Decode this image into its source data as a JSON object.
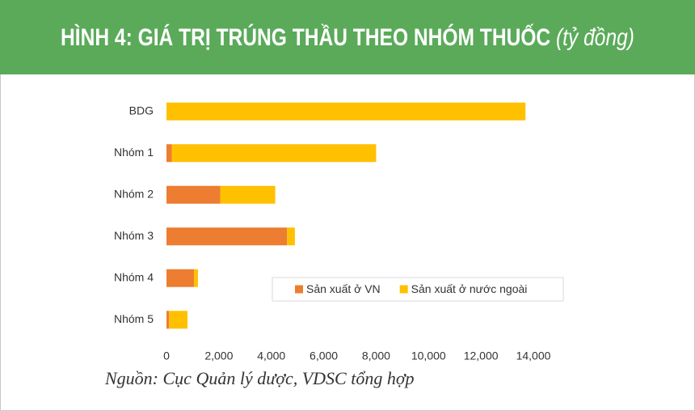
{
  "chart_data": {
    "type": "stacked_barh",
    "title": "HÌNH 4: GIÁ TRỊ TRÚNG THẦU THEO NHÓM THUỐC",
    "unit": "(tỷ đồng)",
    "source": "Nguồn: Cục Quản lý dược, VDSC tổng hợp",
    "categories": [
      "BDG",
      "Nhóm 1",
      "Nhóm 2",
      "Nhóm 3",
      "Nhóm 4",
      "Nhóm 5"
    ],
    "series": [
      {
        "name": "Sản xuất ở VN",
        "color": "#ed7d31",
        "values": [
          0,
          200,
          2050,
          4600,
          1050,
          100
        ]
      },
      {
        "name": "Sản xuất ở nước ngoài",
        "color": "#ffc000",
        "values": [
          13700,
          7800,
          2100,
          300,
          150,
          700
        ]
      }
    ],
    "xlim": [
      0,
      14000
    ],
    "xticks": [
      0,
      {
        "value": 2000,
        "label": "2,000"
      },
      {
        "value": 4000,
        "label": "4,000"
      },
      {
        "value": 6000,
        "label": "6,000"
      },
      {
        "value": 8000,
        "label": "8,000"
      },
      {
        "value": 10000,
        "label": "10,000"
      },
      {
        "value": 12000,
        "label": "12,000"
      },
      {
        "value": 14000,
        "label": "14,000"
      }
    ],
    "grid": false,
    "legend": "lower right"
  }
}
